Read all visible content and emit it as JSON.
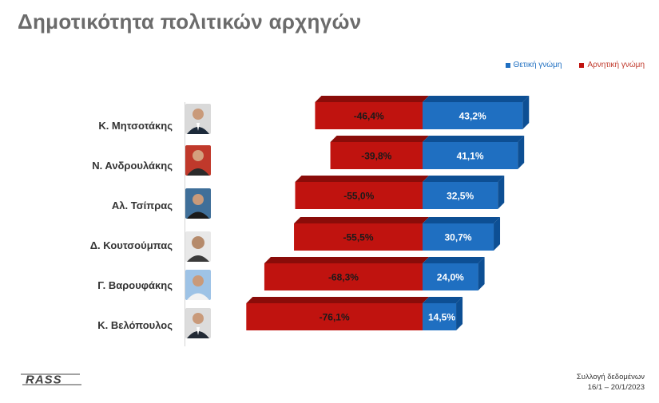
{
  "title": "Δημοτικότητα πολιτικών αρχηγών",
  "legend": {
    "positive": "Θετική γνώμη",
    "negative": "Αρνητική γνώμη"
  },
  "colors": {
    "positive": "#1f6fc1",
    "positive_dark": "#0d4f94",
    "negative": "#c0130f",
    "negative_dark": "#8a0c09",
    "title": "#6b6b6b"
  },
  "footer": {
    "logo": "RASS",
    "note_line1": "Συλλογή δεδομένων",
    "note_line2": "16/1 – 20/1/2023"
  },
  "chart_data": {
    "type": "bar",
    "orientation": "horizontal",
    "stacked": "diverging",
    "categories": [
      "Κ. Μητσοτάκης",
      "Ν. Ανδρουλάκης",
      "Αλ. Τσίπρας",
      "Δ. Κουτσούμπας",
      "Γ. Βαρουφάκης",
      "Κ. Βελόπουλος"
    ],
    "series": [
      {
        "name": "Θετική γνώμη",
        "values": [
          43.2,
          41.1,
          32.5,
          30.7,
          24.0,
          14.5
        ],
        "labels": [
          "43,2%",
          "41,1%",
          "32,5%",
          "30,7%",
          "24,0%",
          "14,5%"
        ]
      },
      {
        "name": "Αρνητική γνώμη",
        "values": [
          -46.4,
          -39.8,
          -55.0,
          -55.5,
          -68.3,
          -76.1
        ],
        "labels": [
          "-46,4%",
          "-39,8%",
          "-55,0%",
          "-55,5%",
          "-68,3%",
          "-76,1%"
        ]
      }
    ],
    "xlim": [
      -80,
      50
    ],
    "legend_position": "top-right",
    "grid": false
  }
}
